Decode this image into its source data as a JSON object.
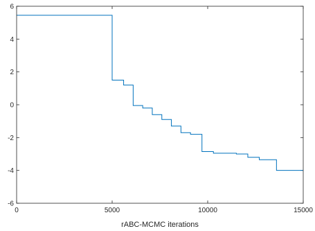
{
  "chart_data": {
    "type": "line",
    "title": "",
    "xlabel": "rABC-MCMC iterations",
    "ylabel": "",
    "xlim": [
      0,
      15000
    ],
    "ylim": [
      -6,
      6
    ],
    "xticks": [
      0,
      5000,
      10000,
      15000
    ],
    "yticks": [
      -6,
      -4,
      -2,
      0,
      2,
      4,
      6
    ],
    "xtick_labels": [
      "0",
      "5000",
      "10000",
      "15000"
    ],
    "ytick_labels": [
      "-6",
      "-4",
      "-2",
      "0",
      "2",
      "4",
      "6"
    ],
    "grid": false,
    "legend": "none",
    "line_color": "#0072BD",
    "series": [
      {
        "step": "post",
        "x": [
          0,
          5000,
          5600,
          6100,
          6600,
          7100,
          7600,
          8100,
          8600,
          9100,
          9700,
          10300,
          11500,
          12100,
          12700,
          13600,
          15000
        ],
        "y": [
          5.45,
          1.5,
          1.2,
          -0.05,
          -0.2,
          -0.6,
          -0.9,
          -1.3,
          -1.7,
          -1.8,
          -2.85,
          -2.95,
          -3.0,
          -3.2,
          -3.35,
          -4.0,
          -4.0
        ]
      }
    ]
  }
}
